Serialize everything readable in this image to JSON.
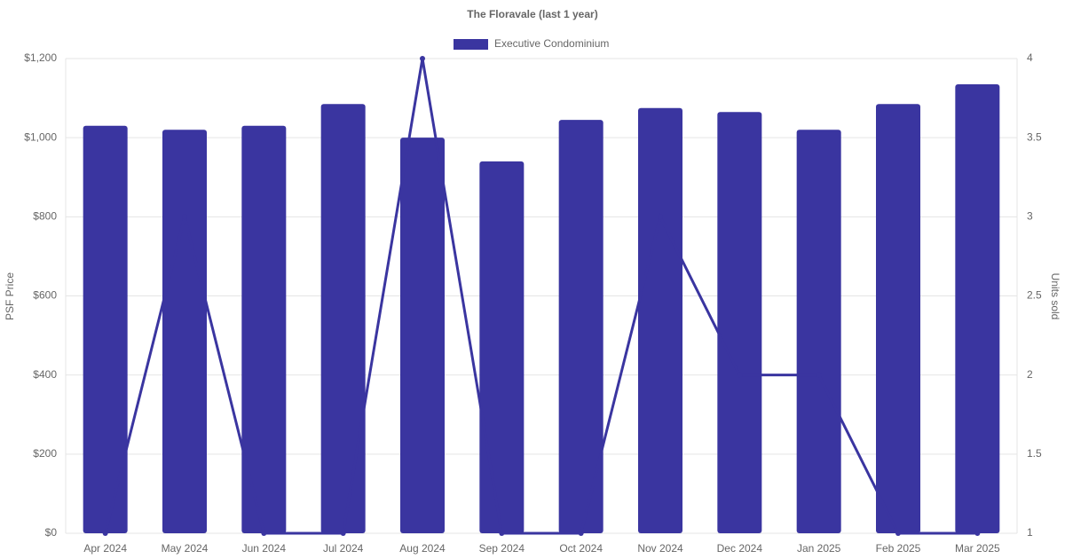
{
  "chart_data": {
    "type": "bar-line",
    "title": "The Floravale (last 1 year)",
    "categories": [
      "Apr 2024",
      "May 2024",
      "Jun 2024",
      "Jul 2024",
      "Aug 2024",
      "Sep 2024",
      "Oct 2024",
      "Nov 2024",
      "Dec 2024",
      "Jan 2025",
      "Feb 2025",
      "Mar 2025"
    ],
    "series": [
      {
        "name": "Executive Condominium",
        "type": "bar",
        "color": "#3a35a0",
        "values": [
          1030,
          1020,
          1030,
          1085,
          1000,
          940,
          1045,
          1075,
          1065,
          1020,
          1085,
          1135
        ]
      },
      {
        "type": "line",
        "axis": "y2",
        "color": "#3a35a0",
        "values": [
          1,
          3,
          1,
          1,
          4,
          1,
          1,
          3,
          2,
          2,
          1,
          1
        ]
      }
    ],
    "ylabel": "PSF Price",
    "y2label": "Units sold",
    "ylim": [
      0,
      1200
    ],
    "yticks": [
      {
        "value": 0,
        "label": "$0"
      },
      {
        "value": 200,
        "label": "$200"
      },
      {
        "value": 400,
        "label": "$400"
      },
      {
        "value": 600,
        "label": "$600"
      },
      {
        "value": 800,
        "label": "$800"
      },
      {
        "value": 1000,
        "label": "$1,000"
      },
      {
        "value": 1200,
        "label": "$1,200"
      }
    ],
    "y2lim": [
      1,
      4
    ],
    "y2ticks": [
      1,
      1.5,
      2,
      2.5,
      3,
      3.5,
      4
    ],
    "grid": true,
    "legend": "top"
  }
}
